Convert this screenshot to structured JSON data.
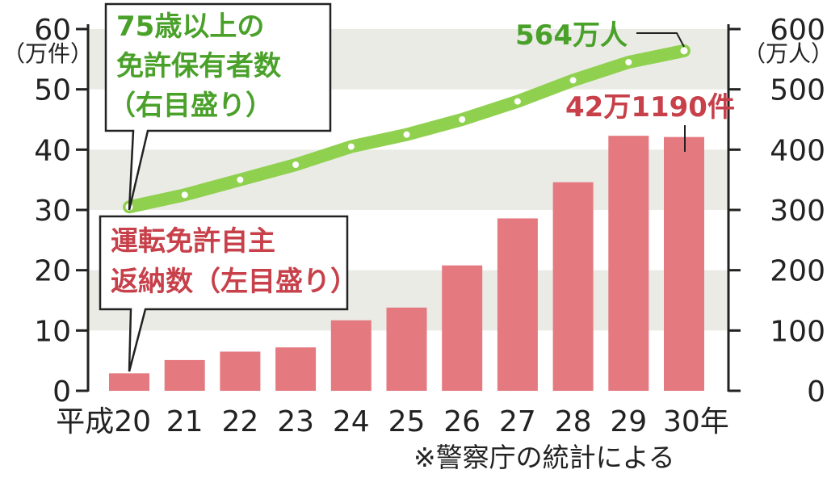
{
  "chart_data": {
    "type": "bar+line",
    "categories": [
      "平成20",
      "21",
      "22",
      "23",
      "24",
      "25",
      "26",
      "27",
      "28",
      "29",
      "30年"
    ],
    "left_axis": {
      "ticks": [
        "0",
        "10",
        "20",
        "30",
        "40",
        "50",
        "60"
      ],
      "unit": "（万件）",
      "ylim": [
        0,
        60
      ]
    },
    "right_axis": {
      "ticks": [
        "0",
        "100",
        "200",
        "300",
        "400",
        "500",
        "600"
      ],
      "unit": "（万人）",
      "ylim": [
        0,
        600
      ]
    },
    "series": [
      {
        "name": "運転免許自主返納数（左目盛り）",
        "name_lines": [
          "運転免許自主",
          "返納数（左目盛り）"
        ],
        "type": "bar",
        "axis": "left",
        "color": "#e47a80",
        "values": [
          2.9,
          5.1,
          6.5,
          7.2,
          11.7,
          13.8,
          20.8,
          28.6,
          34.6,
          42.3,
          42.1
        ]
      },
      {
        "name": "75歳以上の免許保有者数（右目盛り）",
        "name_lines": [
          "75歳以上の",
          "免許保有者数",
          "（右目盛り）"
        ],
        "type": "line",
        "axis": "right",
        "color": "#8fd14f",
        "values": [
          305,
          325,
          350,
          375,
          405,
          425,
          450,
          480,
          515,
          545,
          564
        ]
      }
    ],
    "annotations": {
      "line_end": "564万人",
      "bar_end": "42万1190件"
    },
    "grid": "horizontal bands",
    "source": "※警察庁の統計による"
  }
}
